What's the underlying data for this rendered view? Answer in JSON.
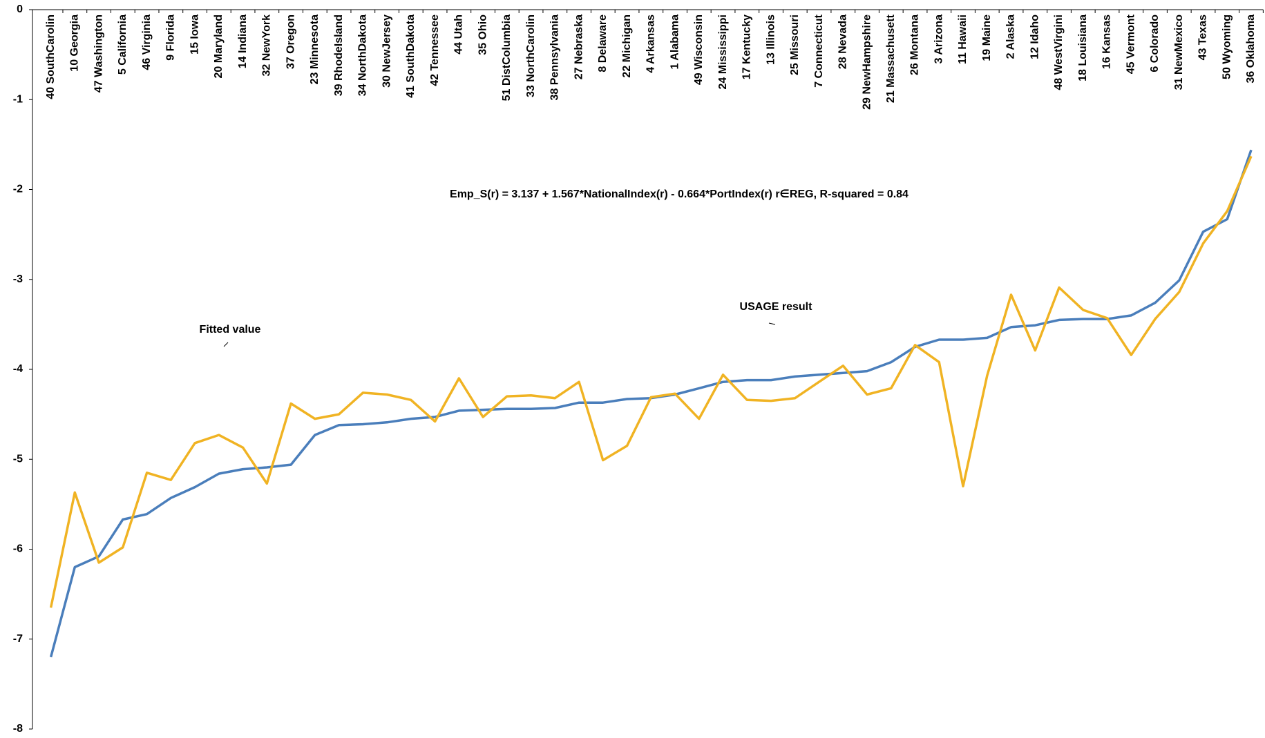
{
  "chart_data": {
    "type": "line",
    "annotations": [
      "Emp_S(r) = 3.137 + 1.567*NationalIndex(r) - 0.664*PortIndex(r)     r∈REG,        R-squared = 0.84"
    ],
    "categories": [
      "40 SouthCarolin",
      "10 Georgia",
      "47 Washington",
      "5 California",
      "46 Virginia",
      "9 Florida",
      "15 Iowa",
      "20 Maryland",
      "14 Indiana",
      "32 NewYork",
      "37 Oregon",
      "23 Minnesota",
      "39 RhodeIsland",
      "34 NorthDakota",
      "30 NewJersey",
      "41 SouthDakota",
      "42 Tennessee",
      "44 Utah",
      "35 Ohio",
      "51 DistColumbia",
      "33 NorthCarolin",
      "38 Pennsylvania",
      "27 Nebraska",
      "8 Delaware",
      "22 Michigan",
      "4 Arkansas",
      "1 Alabama",
      "49 Wisconsin",
      "24 Mississippi",
      "17 Kentucky",
      "13 Illinois",
      "25 Missouri",
      "7 Connecticut",
      "28 Nevada",
      "29 NewHampshire",
      "21 Massachusett",
      "26 Montana",
      "3 Arizona",
      "11 Hawaii",
      "19 Maine",
      "2 Alaska",
      "12 Idaho",
      "48 WestVirgini",
      "18 Louisiana",
      "16 Kansas",
      "45 Vermont",
      "6 Colorado",
      "31 NewMexico",
      "43 Texas",
      "50 Wyoming",
      "36 Oklahoma"
    ],
    "series": [
      {
        "name": "Fitted value",
        "color": "#4a7ebb",
        "values": [
          -7.2,
          -6.2,
          -6.08,
          -5.67,
          -5.61,
          -5.43,
          -5.31,
          -5.16,
          -5.11,
          -5.09,
          -5.06,
          -4.73,
          -4.62,
          -4.61,
          -4.59,
          -4.55,
          -4.53,
          -4.46,
          -4.45,
          -4.44,
          -4.44,
          -4.43,
          -4.37,
          -4.37,
          -4.33,
          -4.32,
          -4.28,
          -4.21,
          -4.14,
          -4.12,
          -4.12,
          -4.08,
          -4.06,
          -4.04,
          -4.02,
          -3.92,
          -3.75,
          -3.67,
          -3.67,
          -3.65,
          -3.53,
          -3.51,
          -3.45,
          -3.44,
          -3.44,
          -3.4,
          -3.26,
          -3.01,
          -2.47,
          -2.33,
          -1.56
        ]
      },
      {
        "name": "USAGE result",
        "color": "#f0b323",
        "values": [
          -6.65,
          -5.37,
          -6.15,
          -5.98,
          -5.15,
          -5.23,
          -4.82,
          -4.73,
          -4.87,
          -5.27,
          -4.38,
          -4.55,
          -4.5,
          -4.26,
          -4.28,
          -4.34,
          -4.58,
          -4.1,
          -4.53,
          -4.3,
          -4.29,
          -4.32,
          -4.14,
          -5.01,
          -4.85,
          -4.31,
          -4.27,
          -4.55,
          -4.06,
          -4.34,
          -4.35,
          -4.32,
          -4.14,
          -3.96,
          -4.28,
          -4.21,
          -3.73,
          -3.92,
          -5.3,
          -4.07,
          -3.17,
          -3.79,
          -3.09,
          -3.34,
          -3.43,
          -3.84,
          -3.44,
          -3.14,
          -2.6,
          -2.24,
          -1.63
        ]
      }
    ],
    "ylim": [
      -8,
      0
    ],
    "yticks": [
      0,
      -1,
      -2,
      -3,
      -4,
      -5,
      -6,
      -7,
      -8
    ]
  }
}
